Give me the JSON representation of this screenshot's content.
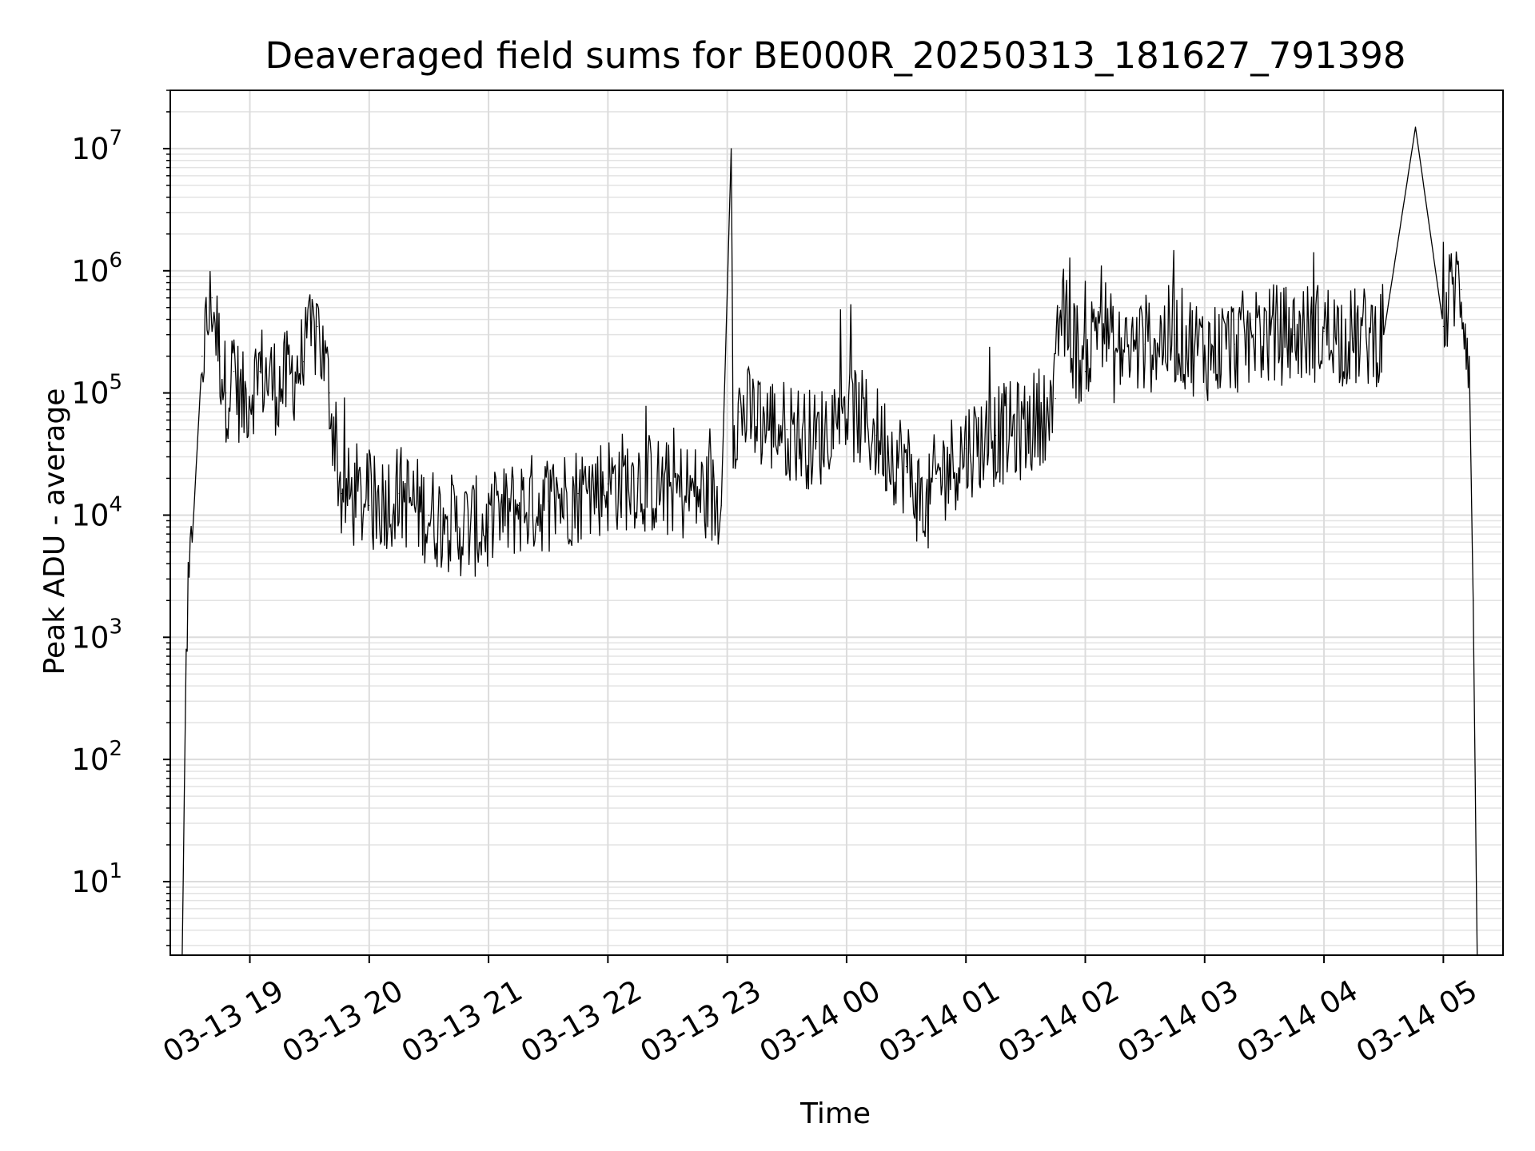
{
  "chart_data": {
    "type": "line",
    "title": "Deaveraged field sums for BE000R_20250313_181627_791398",
    "xlabel": "Time",
    "ylabel": "Peak ADU - average",
    "x_scale": "time",
    "y_scale": "log",
    "xlim": [
      "2025-03-13 18:20",
      "2025-03-14 05:30"
    ],
    "ylim": [
      2.5,
      30000000
    ],
    "grid": true,
    "grid_minor": true,
    "line_color": "#000000",
    "x_ticks": [
      "03-13 19",
      "03-13 20",
      "03-13 21",
      "03-13 22",
      "03-13 23",
      "03-14 00",
      "03-14 01",
      "03-14 02",
      "03-14 03",
      "03-14 04",
      "03-14 05"
    ],
    "y_ticks": [
      {
        "exp": 1,
        "base": "10",
        "power": "1"
      },
      {
        "exp": 2,
        "base": "10",
        "power": "2"
      },
      {
        "exp": 3,
        "base": "10",
        "power": "3"
      },
      {
        "exp": 4,
        "base": "10",
        "power": "4"
      },
      {
        "exp": 5,
        "base": "10",
        "power": "5"
      },
      {
        "exp": 6,
        "base": "10",
        "power": "6"
      },
      {
        "exp": 7,
        "base": "10",
        "power": "7"
      }
    ],
    "series": [
      {
        "x": [
          "2025-03-13 18:26",
          "2025-03-13 18:28",
          "2025-03-13 18:31",
          "2025-03-13 18:36",
          "2025-03-13 18:41",
          "2025-03-13 18:45",
          "2025-03-13 18:48",
          "2025-03-13 18:52",
          "2025-03-13 18:56",
          "2025-03-13 19:05",
          "2025-03-13 19:15",
          "2025-03-13 19:27",
          "2025-03-13 19:34",
          "2025-03-13 19:40",
          "2025-03-13 19:46",
          "2025-03-13 20:00",
          "2025-03-13 20:15",
          "2025-03-13 20:30",
          "2025-03-13 20:45",
          "2025-03-13 21:00",
          "2025-03-13 21:15",
          "2025-03-13 21:30",
          "2025-03-13 21:45",
          "2025-03-13 22:00",
          "2025-03-13 22:15",
          "2025-03-13 22:30",
          "2025-03-13 22:45",
          "2025-03-13 22:57",
          "2025-03-13 23:02",
          "2025-03-13 23:03",
          "2025-03-13 23:06",
          "2025-03-13 23:15",
          "2025-03-13 23:30",
          "2025-03-13 23:45",
          "2025-03-13 23:59",
          "2025-03-14 00:15",
          "2025-03-14 00:30",
          "2025-03-14 00:40",
          "2025-03-14 00:45",
          "2025-03-14 01:00",
          "2025-03-14 01:15",
          "2025-03-14 01:30",
          "2025-03-14 01:45",
          "2025-03-14 01:47",
          "2025-03-14 02:00",
          "2025-03-14 02:07",
          "2025-03-14 02:15",
          "2025-03-14 02:30",
          "2025-03-14 02:45",
          "2025-03-14 03:00",
          "2025-03-14 03:15",
          "2025-03-14 03:30",
          "2025-03-14 03:45",
          "2025-03-14 04:00",
          "2025-03-14 04:15",
          "2025-03-14 04:30",
          "2025-03-14 04:46",
          "2025-03-14 05:00",
          "2025-03-14 05:05",
          "2025-03-14 05:09",
          "2025-03-14 05:13",
          "2025-03-14 05:15",
          "2025-03-14 05:17"
        ],
        "y": [
          2.5,
          800,
          6000,
          200000,
          600000,
          200000,
          100000,
          150000,
          80000,
          150000,
          110000,
          180000,
          350000,
          100000,
          15000,
          12000,
          15000,
          10000,
          8000,
          8000,
          12000,
          13000,
          15000,
          18000,
          20000,
          16000,
          15000,
          12000,
          10000000,
          60000,
          70000,
          60000,
          50000,
          40000,
          80000,
          45000,
          25000,
          10000,
          20000,
          35000,
          45000,
          50000,
          90000,
          500000,
          150000,
          500000,
          200000,
          250000,
          300000,
          220000,
          250000,
          300000,
          300000,
          320000,
          280000,
          300000,
          15000000,
          350000,
          800000,
          700000,
          200000,
          2000,
          2.5
        ]
      }
    ]
  }
}
